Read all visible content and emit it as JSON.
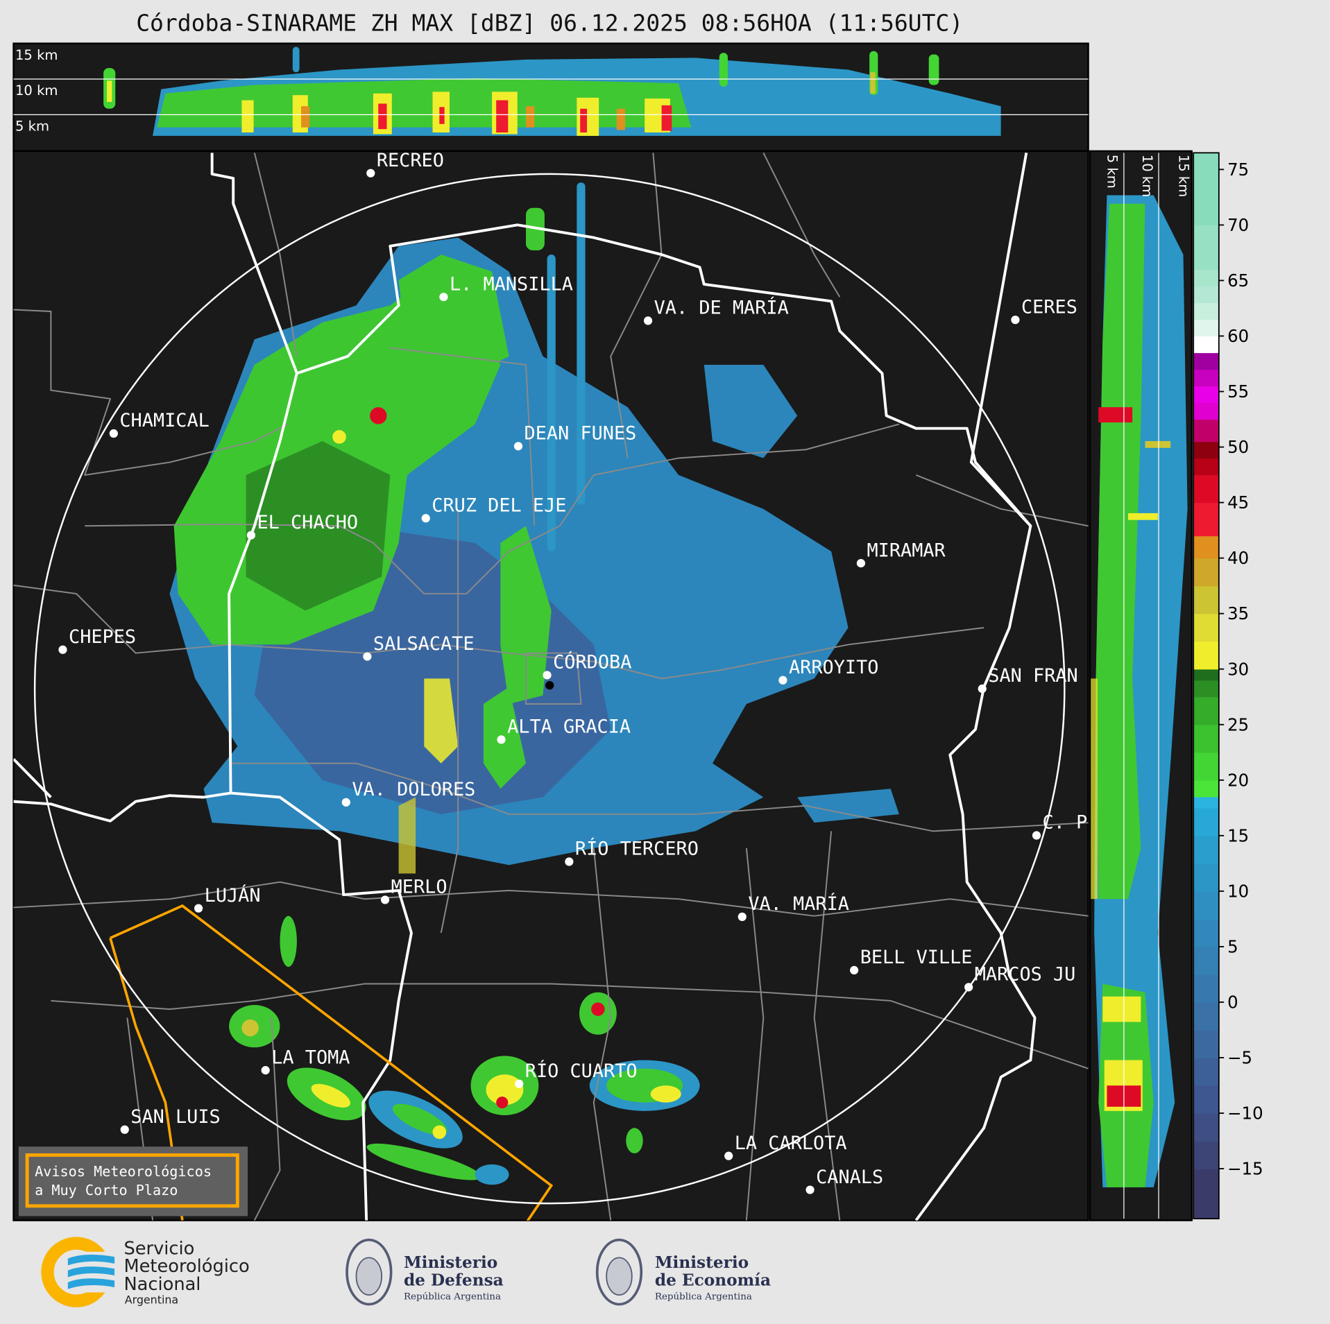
{
  "title": "Córdoba-SINARAME ZH MAX [dBZ] 06.12.2025 08:56HOA (11:56UTC)",
  "top_panel": {
    "height_labels": [
      "15 km",
      "10 km",
      "5 km"
    ]
  },
  "side_panel": {
    "height_labels": [
      "5 km",
      "10 km",
      "15 km"
    ]
  },
  "cities": [
    "RECREO",
    "L. MANSILLA",
    "VA. DE MARÍA",
    "CERES",
    "CHAMICAL",
    "DEAN FUNES",
    "CRUZ DEL EJE",
    "EL CHACHO",
    "MIRAMAR",
    "CHEPES",
    "SALSACATE",
    "CÓRDOBA",
    "ARROYITO",
    "SAN FRAN",
    "ALTA GRACIA",
    "VA. DOLORES",
    "C. P",
    "RÍO TERCERO",
    "MERLO",
    "LUJÁN",
    "VA. MARÍA",
    "BELL VILLE",
    "MARCOS JU",
    "LA TOMA",
    "RÍO CUARTO",
    "SAN LUIS",
    "LA CARLOTA",
    "CANALS"
  ],
  "warning_box": {
    "line1": "Avisos Meteorológicos",
    "line2": "a Muy Corto Plazo",
    "border_color": "#ffa500"
  },
  "colorbar": {
    "unit": "dBZ",
    "range": [
      -19.5,
      76.5
    ],
    "ticks": [
      75,
      70,
      65,
      60,
      55,
      50,
      45,
      40,
      35,
      30,
      25,
      20,
      15,
      10,
      5,
      0,
      -5,
      -10,
      -15
    ],
    "tick_labels": [
      "75",
      "70",
      "65",
      "60",
      "55",
      "50",
      "45",
      "40",
      "35",
      "30",
      "25",
      "20",
      "15",
      "10",
      "5",
      "0",
      "−5",
      "−10",
      "−15"
    ],
    "stops": [
      [
        -19.5,
        "#3b3b6a"
      ],
      [
        -15,
        "#3d4577"
      ],
      [
        -12.5,
        "#3f4f85"
      ],
      [
        -10,
        "#3e5790"
      ],
      [
        -7.5,
        "#3e6098"
      ],
      [
        -5,
        "#3c6aa0"
      ],
      [
        -2.5,
        "#3a72a8"
      ],
      [
        0,
        "#3779af"
      ],
      [
        2.5,
        "#3581b5"
      ],
      [
        5,
        "#3288bb"
      ],
      [
        7.5,
        "#2f8fc0"
      ],
      [
        10,
        "#2c96c6"
      ],
      [
        12.5,
        "#2a9ecc"
      ],
      [
        15,
        "#28a8d6"
      ],
      [
        17.5,
        "#2ab4df"
      ],
      [
        18.5,
        "#4be53a"
      ],
      [
        20,
        "#42d534"
      ],
      [
        22.5,
        "#3cc12f"
      ],
      [
        25,
        "#35ac2a"
      ],
      [
        27.5,
        "#2c8f24"
      ],
      [
        29,
        "#1f6e1e"
      ],
      [
        30,
        "#f0ee2c"
      ],
      [
        32.5,
        "#e1dc33"
      ],
      [
        35,
        "#ccc432"
      ],
      [
        37.5,
        "#cfa72a"
      ],
      [
        40,
        "#df901e"
      ],
      [
        42,
        "#ee1a30"
      ],
      [
        45,
        "#dd0a26"
      ],
      [
        47.5,
        "#b80017"
      ],
      [
        49,
        "#8e0010"
      ],
      [
        50.5,
        "#c2006a"
      ],
      [
        52.5,
        "#e000d0"
      ],
      [
        54,
        "#e800e8"
      ],
      [
        55.5,
        "#c800c0"
      ],
      [
        57,
        "#a000a0"
      ],
      [
        58.5,
        "#ffffff"
      ],
      [
        60,
        "#e0f5ec"
      ],
      [
        61.5,
        "#c8eedd"
      ],
      [
        63,
        "#b4e8d4"
      ],
      [
        64.5,
        "#a8e6cc"
      ],
      [
        66,
        "#98e0c4"
      ],
      [
        70,
        "#88dcbc"
      ]
    ]
  },
  "logos": {
    "smn": {
      "line1": "Servicio",
      "line2": "Meteorológico",
      "line3": "Nacional",
      "line4": "Argentina",
      "orange": "#fbb400",
      "blue": "#29a3dc"
    },
    "defensa": {
      "line1": "Ministerio",
      "line2": "de Defensa",
      "line3": "República Argentina"
    },
    "economia": {
      "line1": "Ministerio",
      "line2": "de Economía",
      "line3": "República Argentina"
    }
  }
}
